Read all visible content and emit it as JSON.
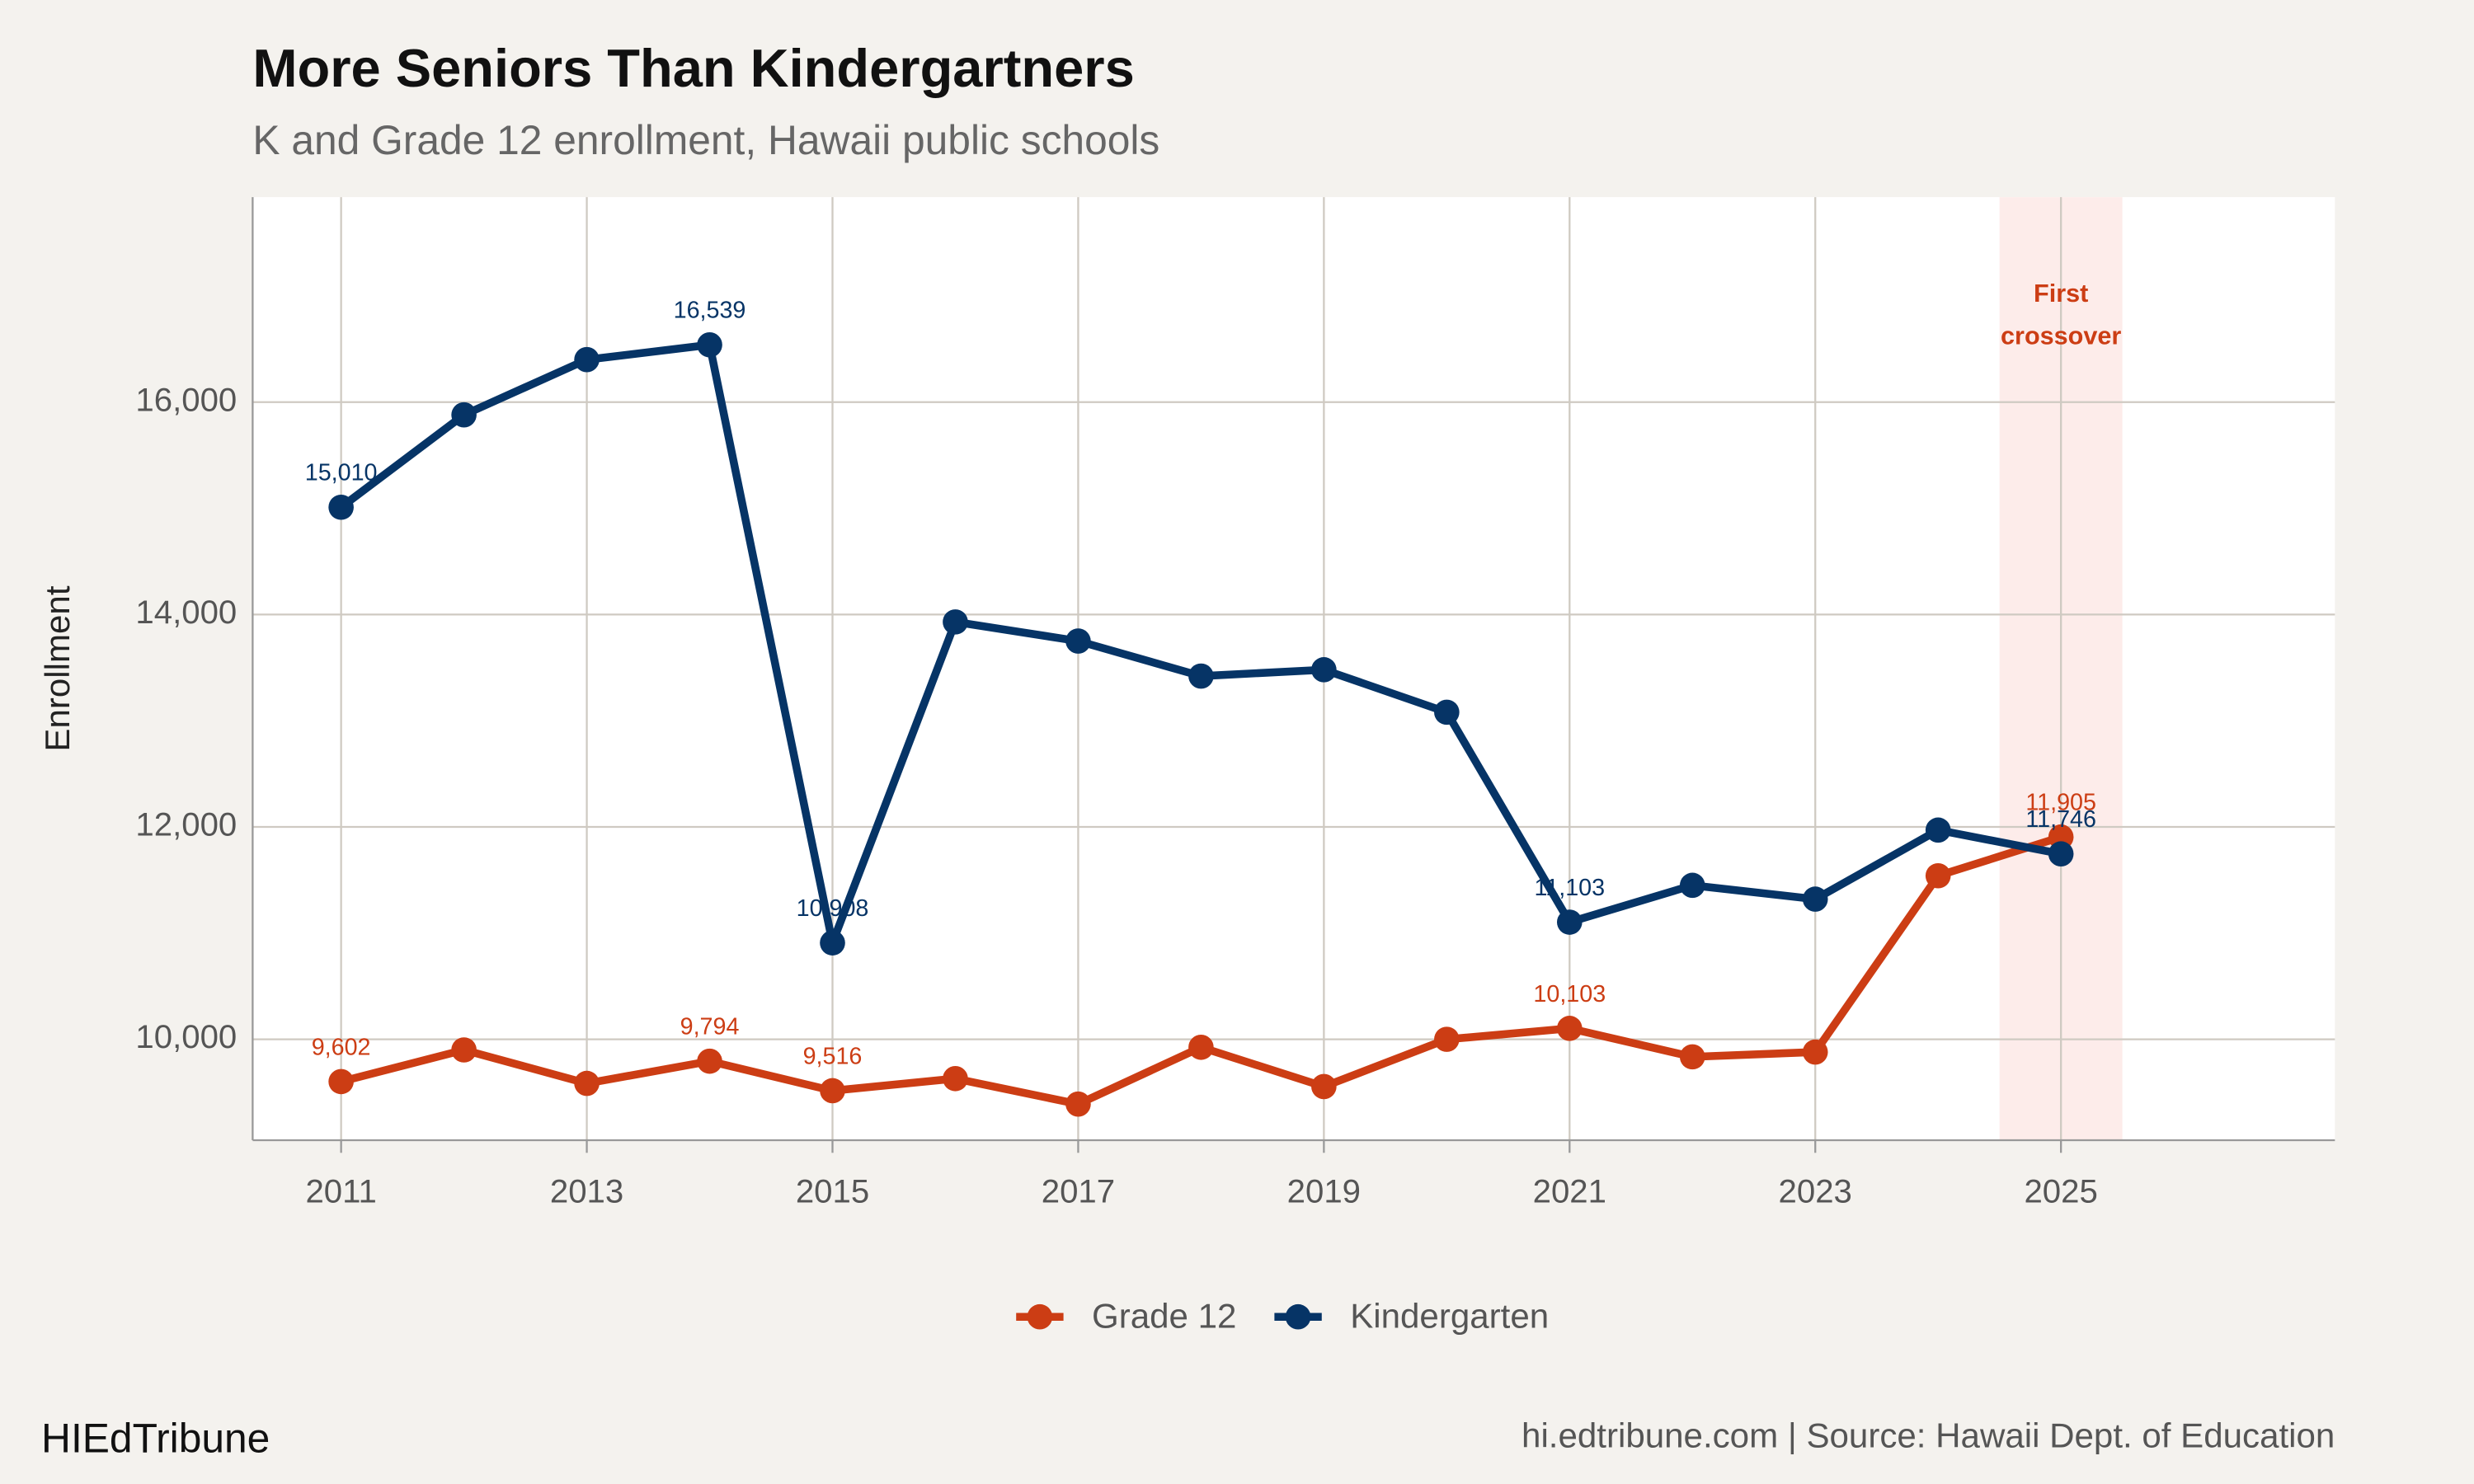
{
  "chart_data": {
    "type": "line",
    "title": "More Seniors Than Kindergartners",
    "subtitle": "K and Grade 12 enrollment, Hawaii public schools",
    "y_label": "Enrollment",
    "x": [
      2011,
      2012,
      2013,
      2014,
      2015,
      2016,
      2017,
      2018,
      2019,
      2020,
      2021,
      2022,
      2023,
      2024,
      2025
    ],
    "series": [
      {
        "name": "Grade 12",
        "color": "#cc3d14",
        "values": [
          9602,
          9900,
          9585,
          9794,
          9516,
          9630,
          9390,
          9925,
          9555,
          10000,
          10103,
          9835,
          9880,
          11540,
          11905
        ],
        "value_labels": [
          "9,602",
          null,
          null,
          "9,794",
          "9,516",
          null,
          null,
          null,
          null,
          null,
          "10,103",
          null,
          null,
          null,
          "11,905"
        ]
      },
      {
        "name": "Kindergarten",
        "color": "#063466",
        "values": [
          15010,
          15880,
          16400,
          16539,
          10908,
          13930,
          13750,
          13420,
          13480,
          13080,
          11103,
          11450,
          11320,
          11970,
          11746
        ],
        "value_labels": [
          "15,010",
          null,
          null,
          "16,539",
          "10,908",
          null,
          null,
          null,
          null,
          null,
          "11,103",
          null,
          null,
          null,
          "11,746"
        ]
      }
    ],
    "xlim": [
      2010.28,
      2027.23
    ],
    "ylim": [
      9050,
      17930
    ],
    "xticks": [
      2011,
      2013,
      2015,
      2017,
      2019,
      2021,
      2023,
      2025
    ],
    "yticks": [
      {
        "value": 10000,
        "label": "10,000"
      },
      {
        "value": 12000,
        "label": "12,000"
      },
      {
        "value": 14000,
        "label": "14,000"
      },
      {
        "value": 16000,
        "label": "16,000"
      }
    ],
    "grid": true,
    "legend": "bottom",
    "highlight": {
      "x_range": [
        2024.5,
        2025.5
      ],
      "lines": [
        "First",
        "crossover"
      ],
      "color": "#fdecea",
      "text_color": "#cc3d14"
    },
    "credit": "HIEdTribune",
    "source": "hi.edtribune.com | Source: Hawaii Dept. of Education"
  }
}
